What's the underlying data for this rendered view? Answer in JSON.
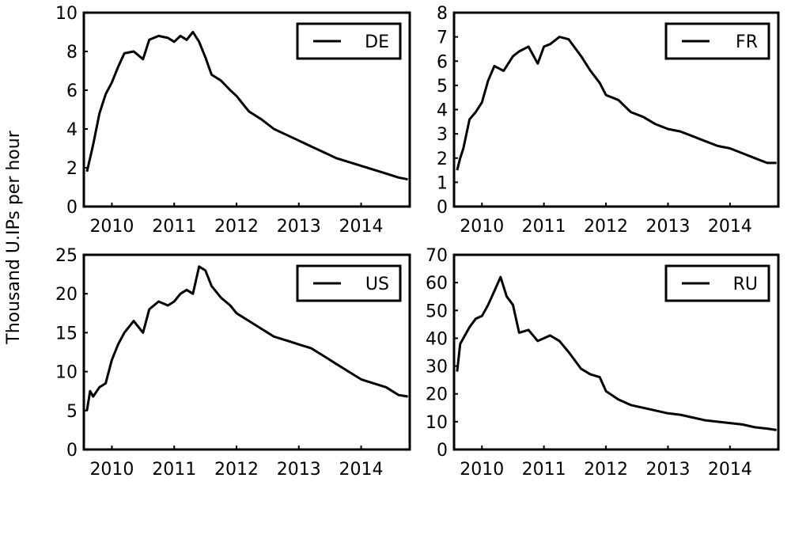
{
  "figure": {
    "ylabel": "Thousand U.IPs per hour"
  },
  "chart_data": [
    {
      "type": "line",
      "legend": "top-right",
      "series": [
        {
          "name": "DE",
          "x": [
            2009.6,
            2009.65,
            2009.7,
            2009.8,
            2009.9,
            2010.0,
            2010.1,
            2010.2,
            2010.35,
            2010.5,
            2010.6,
            2010.75,
            2010.9,
            2011.0,
            2011.1,
            2011.2,
            2011.3,
            2011.4,
            2011.5,
            2011.6,
            2011.75,
            2011.9,
            2012.0,
            2012.2,
            2012.4,
            2012.6,
            2012.8,
            2013.0,
            2013.2,
            2013.4,
            2013.6,
            2013.8,
            2014.0,
            2014.2,
            2014.4,
            2014.6,
            2014.75
          ],
          "y": [
            1.8,
            2.5,
            3.2,
            4.8,
            5.8,
            6.4,
            7.2,
            7.9,
            8.0,
            7.6,
            8.6,
            8.8,
            8.7,
            8.5,
            8.8,
            8.6,
            9.0,
            8.5,
            7.7,
            6.8,
            6.5,
            6.0,
            5.7,
            4.9,
            4.5,
            4.0,
            3.7,
            3.4,
            3.1,
            2.8,
            2.5,
            2.3,
            2.1,
            1.9,
            1.7,
            1.5,
            1.4
          ]
        }
      ],
      "ylim": [
        0,
        10
      ],
      "yticks": [
        0,
        2,
        4,
        6,
        8,
        10
      ],
      "xlim": [
        2009.55,
        2014.78
      ],
      "xticks": [
        2010,
        2011,
        2012,
        2013,
        2014
      ]
    },
    {
      "type": "line",
      "legend": "top-right",
      "series": [
        {
          "name": "FR",
          "x": [
            2009.6,
            2009.65,
            2009.7,
            2009.8,
            2009.9,
            2010.0,
            2010.1,
            2010.2,
            2010.35,
            2010.5,
            2010.6,
            2010.75,
            2010.9,
            2011.0,
            2011.1,
            2011.25,
            2011.4,
            2011.6,
            2011.75,
            2011.9,
            2012.0,
            2012.2,
            2012.4,
            2012.6,
            2012.8,
            2013.0,
            2013.2,
            2013.4,
            2013.6,
            2013.8,
            2014.0,
            2014.2,
            2014.4,
            2014.6,
            2014.75
          ],
          "y": [
            1.5,
            2.0,
            2.4,
            3.6,
            3.9,
            4.3,
            5.2,
            5.8,
            5.6,
            6.2,
            6.4,
            6.6,
            5.9,
            6.6,
            6.7,
            7.0,
            6.9,
            6.2,
            5.6,
            5.1,
            4.6,
            4.4,
            3.9,
            3.7,
            3.4,
            3.2,
            3.1,
            2.9,
            2.7,
            2.5,
            2.4,
            2.2,
            2.0,
            1.8,
            1.8
          ]
        }
      ],
      "ylim": [
        0,
        8
      ],
      "yticks": [
        0,
        1,
        2,
        3,
        4,
        5,
        6,
        7,
        8
      ],
      "xlim": [
        2009.55,
        2014.78
      ],
      "xticks": [
        2010,
        2011,
        2012,
        2013,
        2014
      ]
    },
    {
      "type": "line",
      "legend": "top-right",
      "series": [
        {
          "name": "US",
          "x": [
            2009.6,
            2009.65,
            2009.7,
            2009.8,
            2009.9,
            2010.0,
            2010.1,
            2010.2,
            2010.35,
            2010.5,
            2010.6,
            2010.75,
            2010.9,
            2011.0,
            2011.1,
            2011.2,
            2011.3,
            2011.4,
            2011.5,
            2011.6,
            2011.75,
            2011.9,
            2012.0,
            2012.2,
            2012.4,
            2012.6,
            2012.8,
            2013.0,
            2013.2,
            2013.4,
            2013.6,
            2013.8,
            2014.0,
            2014.2,
            2014.4,
            2014.6,
            2014.75
          ],
          "y": [
            5.0,
            7.5,
            6.8,
            8.0,
            8.5,
            11.5,
            13.5,
            15.0,
            16.5,
            15.0,
            18.0,
            19.0,
            18.5,
            19.0,
            20.0,
            20.5,
            20.0,
            23.5,
            23.0,
            21.0,
            19.5,
            18.5,
            17.5,
            16.5,
            15.5,
            14.5,
            14.0,
            13.5,
            13.0,
            12.0,
            11.0,
            10.0,
            9.0,
            8.5,
            8.0,
            7.0,
            6.8
          ]
        }
      ],
      "ylim": [
        0,
        25
      ],
      "yticks": [
        0,
        5,
        10,
        15,
        20,
        25
      ],
      "xlim": [
        2009.55,
        2014.78
      ],
      "xticks": [
        2010,
        2011,
        2012,
        2013,
        2014
      ]
    },
    {
      "type": "line",
      "legend": "top-right",
      "series": [
        {
          "name": "RU",
          "x": [
            2009.6,
            2009.65,
            2009.7,
            2009.8,
            2009.9,
            2010.0,
            2010.1,
            2010.2,
            2010.3,
            2010.4,
            2010.5,
            2010.6,
            2010.75,
            2010.9,
            2011.0,
            2011.1,
            2011.25,
            2011.4,
            2011.6,
            2011.75,
            2011.9,
            2012.0,
            2012.2,
            2012.4,
            2012.6,
            2012.8,
            2013.0,
            2013.2,
            2013.4,
            2013.6,
            2013.8,
            2014.0,
            2014.2,
            2014.4,
            2014.6,
            2014.75
          ],
          "y": [
            28.0,
            38.0,
            40.0,
            44.0,
            47.0,
            48.0,
            52.0,
            57.0,
            62.0,
            55.0,
            52.0,
            42.0,
            43.0,
            39.0,
            40.0,
            41.0,
            39.0,
            35.0,
            29.0,
            27.0,
            26.0,
            21.0,
            18.0,
            16.0,
            15.0,
            14.0,
            13.0,
            12.5,
            11.5,
            10.5,
            10.0,
            9.5,
            9.0,
            8.0,
            7.5,
            7.0
          ]
        }
      ],
      "ylim": [
        0,
        70
      ],
      "yticks": [
        0,
        10,
        20,
        30,
        40,
        50,
        60,
        70
      ],
      "xlim": [
        2009.55,
        2014.78
      ],
      "xticks": [
        2010,
        2011,
        2012,
        2013,
        2014
      ]
    }
  ]
}
